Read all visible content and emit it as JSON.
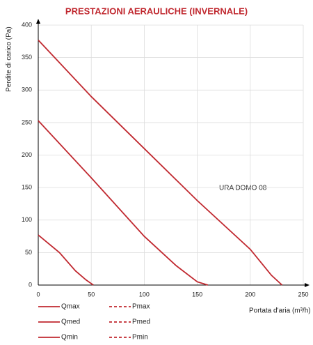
{
  "chart_data": {
    "type": "line",
    "title": "PRESTAZIONI AERAULICHE (INVERNALE)",
    "x_label": "Portata d'aria (m³/h)",
    "y_label": "Perdite di carico  (Pa)",
    "annotation": "URA DOMO 08",
    "xlim": [
      0,
      250
    ],
    "xticks": [
      0,
      50,
      100,
      150,
      200,
      250
    ],
    "ylim": [
      0,
      400
    ],
    "yticks": [
      0,
      50,
      100,
      150,
      200,
      250,
      300,
      350,
      400
    ],
    "grid": true,
    "series": [
      {
        "name": "Qmax",
        "color": "#c0282f",
        "x": [
          0,
          50,
          100,
          150,
          200,
          220,
          230
        ],
        "values": [
          377,
          290,
          210,
          130,
          55,
          15,
          0
        ]
      },
      {
        "name": "Qmed",
        "color": "#c0282f",
        "x": [
          0,
          50,
          100,
          130,
          150,
          160
        ],
        "values": [
          253,
          165,
          75,
          30,
          5,
          0
        ]
      },
      {
        "name": "Qmin",
        "color": "#c0282f",
        "x": [
          0,
          20,
          35,
          45,
          52
        ],
        "values": [
          77,
          50,
          22,
          8,
          0
        ]
      },
      {
        "name": "Pmax",
        "color": "#c0282f",
        "dash": "dashed",
        "x": [],
        "values": []
      },
      {
        "name": "Pmed",
        "color": "#c0282f",
        "dash": "dashed",
        "x": [],
        "values": []
      },
      {
        "name": "Pmin",
        "color": "#c0282f",
        "dash": "dashed",
        "x": [],
        "values": []
      }
    ]
  }
}
